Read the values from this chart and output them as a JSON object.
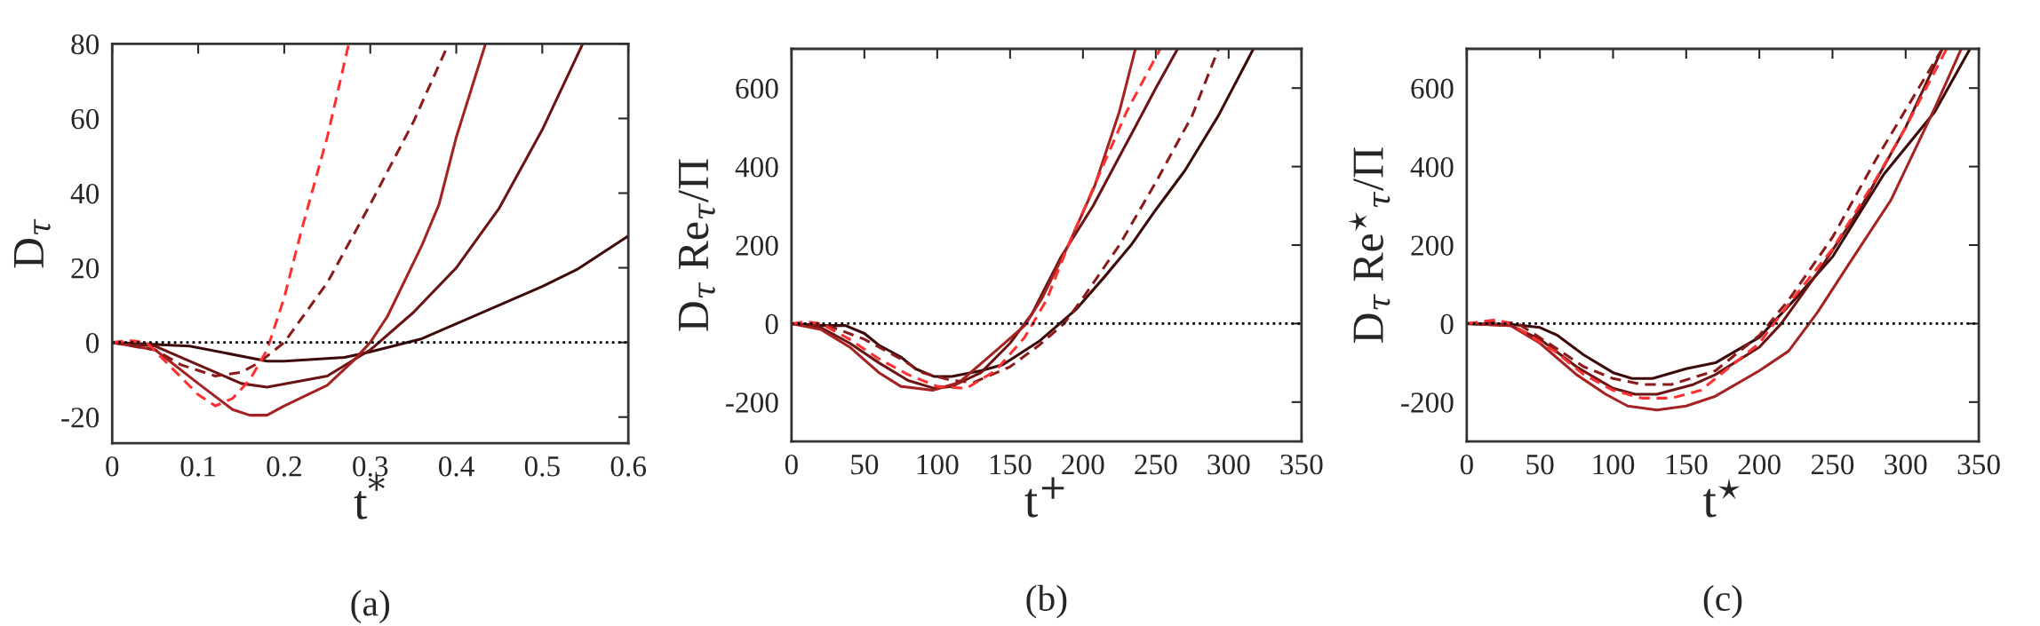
{
  "chart_data": [
    {
      "type": "line",
      "title": "(a)",
      "xlabel": "t$^{*}$",
      "ylabel": "D$_{τ}$",
      "xlim": [
        0,
        0.6
      ],
      "ylim": [
        -27,
        80
      ],
      "xticks": [
        0,
        0.1,
        0.2,
        0.3,
        0.4,
        0.5,
        0.6
      ],
      "yticks": [
        -20,
        0,
        20,
        40,
        60,
        80
      ],
      "grid": false,
      "legend": false,
      "ref_lines": [
        {
          "axis": "y",
          "value": 0,
          "color": "#000000",
          "line_style": "dotted"
        }
      ],
      "series": [
        {
          "color": "#3d0a0a",
          "line_style": "solid",
          "x": [
            0,
            0.09,
            0.18,
            0.2,
            0.27,
            0.3,
            0.36,
            0.4,
            0.45,
            0.5,
            0.54,
            0.6
          ],
          "values": [
            0,
            -1,
            -5,
            -5,
            -4,
            -2.5,
            1,
            5,
            10,
            15,
            19.5,
            28.5
          ]
        },
        {
          "color": "#6b1414",
          "line_style": "solid",
          "x": [
            0,
            0.05,
            0.1,
            0.15,
            0.18,
            0.25,
            0.3,
            0.35,
            0.4,
            0.45,
            0.5,
            0.547
          ],
          "values": [
            0,
            -1,
            -6,
            -11,
            -12,
            -9,
            -2,
            8,
            20,
            36,
            57,
            80
          ]
        },
        {
          "color": "#a52222",
          "line_style": "solid",
          "x": [
            0,
            0.05,
            0.1,
            0.14,
            0.16,
            0.18,
            0.2,
            0.25,
            0.28,
            0.3,
            0.32,
            0.36,
            0.38,
            0.4,
            0.434
          ],
          "values": [
            0,
            -2,
            -11,
            -18,
            -19.5,
            -19.5,
            -17,
            -11.5,
            -5,
            0,
            7,
            26,
            37,
            55,
            80
          ]
        },
        {
          "color": "#8b1a1a",
          "line_style": "dashed",
          "x": [
            0,
            0.05,
            0.08,
            0.12,
            0.15,
            0.17,
            0.2,
            0.25,
            0.3,
            0.35,
            0.391
          ],
          "values": [
            0,
            -2,
            -6,
            -9,
            -8,
            -5.5,
            0,
            16,
            37,
            59,
            80
          ]
        },
        {
          "color": "#ff3030",
          "line_style": "dashed",
          "x": [
            0,
            0.02,
            0.04,
            0.07,
            0.1,
            0.12,
            0.14,
            0.16,
            0.18,
            0.2,
            0.22,
            0.25,
            0.275
          ],
          "values": [
            0,
            0.5,
            0,
            -7,
            -14,
            -17,
            -15,
            -10,
            -2,
            12,
            30,
            55,
            80
          ]
        }
      ]
    },
    {
      "type": "line",
      "title": "(b)",
      "xlabel": "t$^{+}$",
      "ylabel": "D$_{τ}$ Re$_{τ}$/Π",
      "xlim": [
        0,
        350
      ],
      "ylim": [
        -300,
        700
      ],
      "xticks": [
        0,
        50,
        100,
        150,
        200,
        250,
        300,
        350
      ],
      "yticks": [
        -200,
        0,
        200,
        400,
        600
      ],
      "grid": false,
      "legend": false,
      "ref_lines": [
        {
          "axis": "y",
          "value": 0,
          "color": "#000000",
          "line_style": "dotted"
        }
      ],
      "series": [
        {
          "color": "#3d0a0a",
          "line_style": "solid",
          "x": [
            0,
            20,
            37,
            50,
            60,
            75,
            85,
            98,
            110,
            130,
            145,
            170,
            195,
            215,
            233,
            250,
            270,
            293,
            317
          ],
          "values": [
            0,
            -5,
            -5,
            -25,
            -55,
            -85,
            -115,
            -135,
            -135,
            -120,
            -105,
            -45,
            35,
            120,
            200,
            290,
            390,
            530,
            700
          ]
        },
        {
          "color": "#6b1414",
          "line_style": "solid",
          "x": [
            0,
            20,
            40,
            60,
            80,
            98,
            110,
            130,
            150,
            165,
            185,
            207,
            230,
            250,
            265
          ],
          "values": [
            0,
            -10,
            -50,
            -100,
            -145,
            -165,
            -160,
            -125,
            -50,
            25,
            170,
            300,
            460,
            600,
            700
          ]
        },
        {
          "color": "#a52222",
          "line_style": "solid",
          "x": [
            0,
            20,
            40,
            60,
            75,
            97,
            115,
            140,
            160,
            172,
            190,
            208,
            225,
            236
          ],
          "values": [
            0,
            -15,
            -60,
            -125,
            -160,
            -170,
            -150,
            -70,
            -5,
            65,
            200,
            350,
            540,
            700
          ]
        },
        {
          "color": "#8b1a1a",
          "line_style": "dashed",
          "x": [
            0,
            25,
            50,
            75,
            90,
            110,
            125,
            150,
            170,
            187,
            200,
            225,
            250,
            275,
            293
          ],
          "values": [
            0,
            -5,
            -40,
            -90,
            -125,
            -145,
            -150,
            -110,
            -55,
            0,
            65,
            200,
            360,
            530,
            700
          ]
        },
        {
          "color": "#ff3030",
          "line_style": "dashed",
          "x": [
            0,
            10,
            20,
            40,
            60,
            80,
            100,
            120,
            140,
            160,
            175,
            190,
            210,
            230,
            253
          ],
          "values": [
            0,
            5,
            0,
            -40,
            -90,
            -130,
            -160,
            -165,
            -120,
            -35,
            60,
            200,
            370,
            540,
            700
          ]
        }
      ]
    },
    {
      "type": "line",
      "title": "(c)",
      "xlabel": "t$^{⋆}$",
      "ylabel": "D$_{τ}$ Re$^{⋆}$$_{τ}$/Π",
      "xlim": [
        0,
        350
      ],
      "ylim": [
        -300,
        700
      ],
      "xticks": [
        0,
        50,
        100,
        150,
        200,
        250,
        300,
        350
      ],
      "yticks": [
        -200,
        0,
        200,
        400,
        600
      ],
      "grid": false,
      "legend": false,
      "ref_lines": [
        {
          "axis": "y",
          "value": 0,
          "color": "#000000",
          "line_style": "dotted"
        }
      ],
      "series": [
        {
          "color": "#3d0a0a",
          "line_style": "solid",
          "x": [
            0,
            30,
            50,
            62,
            80,
            100,
            113,
            127,
            150,
            170,
            200,
            225,
            250,
            285,
            320,
            344
          ],
          "values": [
            0,
            -2,
            -10,
            -30,
            -80,
            -125,
            -140,
            -140,
            -115,
            -100,
            -35,
            65,
            170,
            380,
            540,
            700
          ]
        },
        {
          "color": "#6b1414",
          "line_style": "solid",
          "x": [
            0,
            30,
            50,
            75,
            100,
            115,
            130,
            155,
            170,
            200,
            215,
            240,
            270,
            300,
            325
          ],
          "values": [
            0,
            -5,
            -40,
            -110,
            -165,
            -180,
            -180,
            -155,
            -130,
            -60,
            0,
            130,
            300,
            500,
            700
          ]
        },
        {
          "color": "#a52222",
          "line_style": "solid",
          "x": [
            0,
            30,
            50,
            75,
            95,
            110,
            130,
            150,
            170,
            200,
            220,
            240,
            260,
            290,
            320,
            338
          ],
          "values": [
            0,
            -5,
            -50,
            -130,
            -180,
            -210,
            -220,
            -210,
            -185,
            -120,
            -70,
            30,
            145,
            315,
            550,
            700
          ]
        },
        {
          "color": "#8b1a1a",
          "line_style": "dashed",
          "x": [
            0,
            20,
            35,
            60,
            80,
            100,
            120,
            140,
            170,
            200,
            220,
            250,
            280,
            325
          ],
          "values": [
            0,
            5,
            0,
            -60,
            -110,
            -140,
            -155,
            -155,
            -120,
            -30,
            60,
            220,
            420,
            700
          ]
        },
        {
          "color": "#ff3030",
          "line_style": "dashed",
          "x": [
            0,
            20,
            30,
            60,
            80,
            100,
            120,
            140,
            160,
            180,
            200,
            220,
            250,
            280,
            300,
            328
          ],
          "values": [
            0,
            10,
            0,
            -70,
            -130,
            -170,
            -190,
            -190,
            -170,
            -110,
            -50,
            50,
            190,
            370,
            500,
            700
          ]
        }
      ]
    }
  ]
}
